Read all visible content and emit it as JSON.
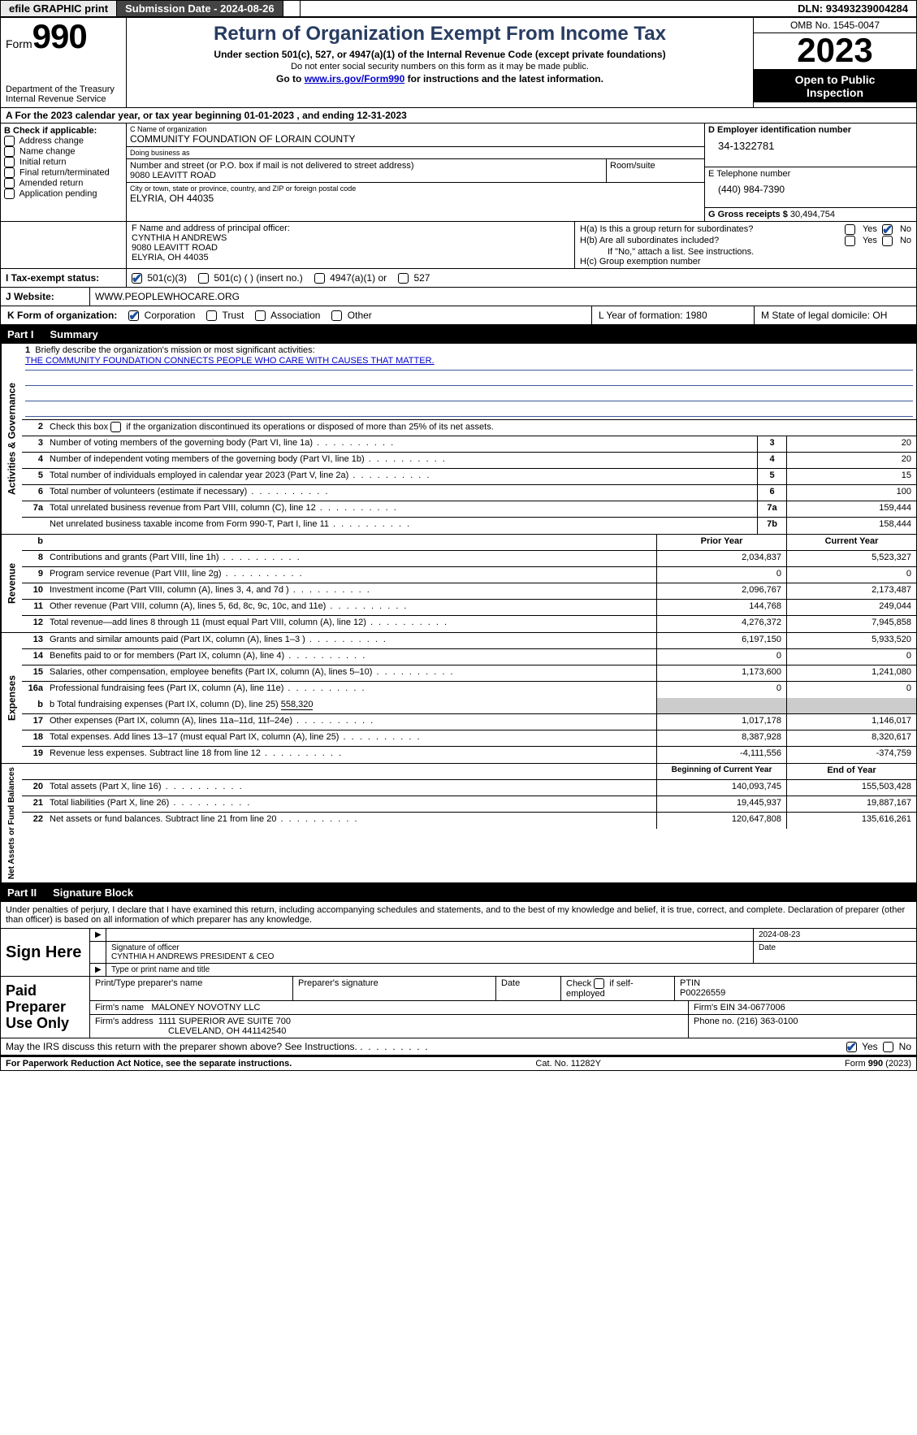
{
  "topbar": {
    "efile": "efile GRAPHIC print",
    "submission": "Submission Date - 2024-08-26",
    "dln_label": "DLN:",
    "dln": "93493239004284"
  },
  "header": {
    "form_word": "Form",
    "form_no": "990",
    "title": "Return of Organization Exempt From Income Tax",
    "sub1": "Under section 501(c), 527, or 4947(a)(1) of the Internal Revenue Code (except private foundations)",
    "sub2": "Do not enter social security numbers on this form as it may be made public.",
    "sub3_pre": "Go to ",
    "sub3_link": "www.irs.gov/Form990",
    "sub3_post": " for instructions and the latest information.",
    "dept": "Department of the Treasury",
    "irs": "Internal Revenue Service",
    "omb": "OMB No. 1545-0047",
    "year": "2023",
    "inspect1": "Open to Public",
    "inspect2": "Inspection"
  },
  "rowA": {
    "text_pre": "A For the 2023 calendar year, or tax year beginning ",
    "begin": "01-01-2023",
    "mid": " , and ending ",
    "end": "12-31-2023"
  },
  "colB": {
    "label": "B Check if applicable:",
    "items": [
      "Address change",
      "Name change",
      "Initial return",
      "Final return/terminated",
      "Amended return",
      "Application pending"
    ]
  },
  "colC": {
    "name_label": "C Name of organization",
    "name": "COMMUNITY FOUNDATION OF LORAIN COUNTY",
    "dba_label": "Doing business as",
    "dba": "",
    "addr_label": "Number and street (or P.O. box if mail is not delivered to street address)",
    "addr": "9080 LEAVITT ROAD",
    "room_label": "Room/suite",
    "city_label": "City or town, state or province, country, and ZIP or foreign postal code",
    "city": "ELYRIA, OH  44035"
  },
  "colD": {
    "ein_label": "D Employer identification number",
    "ein": "34-1322781",
    "phone_label": "E Telephone number",
    "phone": "(440) 984-7390",
    "gross_label": "G Gross receipts $",
    "gross": "30,494,754"
  },
  "F": {
    "label": "F  Name and address of principal officer:",
    "l1": "CYNTHIA H ANDREWS",
    "l2": "9080 LEAVITT ROAD",
    "l3": "ELYRIA, OH  44035"
  },
  "H": {
    "a": "H(a)  Is this a group return for subordinates?",
    "b": "H(b)  Are all subordinates included?",
    "b2": "If \"No,\" attach a list. See instructions.",
    "c": "H(c)  Group exemption number",
    "yes": "Yes",
    "no": "No"
  },
  "I": {
    "label": "I   Tax-exempt status:",
    "o1": "501(c)(3)",
    "o2": "501(c) (  ) (insert no.)",
    "o3": "4947(a)(1) or",
    "o4": "527"
  },
  "J": {
    "label": "J   Website:",
    "val": "WWW.PEOPLEWHOCARE.ORG"
  },
  "K": {
    "label": "K Form of organization:",
    "o1": "Corporation",
    "o2": "Trust",
    "o3": "Association",
    "o4": "Other",
    "L": "L Year of formation: 1980",
    "M": "M State of legal domicile: OH"
  },
  "part1": {
    "pn": "Part I",
    "title": "Summary"
  },
  "summary": {
    "gov_label": "Activities & Governance",
    "rev_label": "Revenue",
    "exp_label": "Expenses",
    "net_label": "Net Assets or Fund Balances",
    "l1a": "Briefly describe the organization's mission or most significant activities:",
    "l1b": "THE COMMUNITY FOUNDATION CONNECTS PEOPLE WHO CARE WITH CAUSES THAT MATTER.",
    "l2": "Check this box      if the organization discontinued its operations or disposed of more than 25% of its net assets.",
    "rows_gov": [
      {
        "n": "3",
        "t": "Number of voting members of the governing body (Part VI, line 1a)",
        "box": "3",
        "v": "20"
      },
      {
        "n": "4",
        "t": "Number of independent voting members of the governing body (Part VI, line 1b)",
        "box": "4",
        "v": "20"
      },
      {
        "n": "5",
        "t": "Total number of individuals employed in calendar year 2023 (Part V, line 2a)",
        "box": "5",
        "v": "15"
      },
      {
        "n": "6",
        "t": "Total number of volunteers (estimate if necessary)",
        "box": "6",
        "v": "100"
      },
      {
        "n": "7a",
        "t": "Total unrelated business revenue from Part VIII, column (C), line 12",
        "box": "7a",
        "v": "159,444"
      },
      {
        "n": "",
        "t": "Net unrelated business taxable income from Form 990-T, Part I, line 11",
        "box": "7b",
        "v": "158,444"
      }
    ],
    "col_prior": "Prior Year",
    "col_curr": "Current Year",
    "rows_rev": [
      {
        "n": "8",
        "t": "Contributions and grants (Part VIII, line 1h)",
        "p": "2,034,837",
        "c": "5,523,327"
      },
      {
        "n": "9",
        "t": "Program service revenue (Part VIII, line 2g)",
        "p": "0",
        "c": "0"
      },
      {
        "n": "10",
        "t": "Investment income (Part VIII, column (A), lines 3, 4, and 7d )",
        "p": "2,096,767",
        "c": "2,173,487"
      },
      {
        "n": "11",
        "t": "Other revenue (Part VIII, column (A), lines 5, 6d, 8c, 9c, 10c, and 11e)",
        "p": "144,768",
        "c": "249,044"
      },
      {
        "n": "12",
        "t": "Total revenue—add lines 8 through 11 (must equal Part VIII, column (A), line 12)",
        "p": "4,276,372",
        "c": "7,945,858"
      }
    ],
    "rows_exp": [
      {
        "n": "13",
        "t": "Grants and similar amounts paid (Part IX, column (A), lines 1–3 )",
        "p": "6,197,150",
        "c": "5,933,520"
      },
      {
        "n": "14",
        "t": "Benefits paid to or for members (Part IX, column (A), line 4)",
        "p": "0",
        "c": "0"
      },
      {
        "n": "15",
        "t": "Salaries, other compensation, employee benefits (Part IX, column (A), lines 5–10)",
        "p": "1,173,600",
        "c": "1,241,080"
      },
      {
        "n": "16a",
        "t": "Professional fundraising fees (Part IX, column (A), line 11e)",
        "p": "0",
        "c": "0"
      }
    ],
    "l16b_pre": "b  Total fundraising expenses (Part IX, column (D), line 25) ",
    "l16b_val": "558,320",
    "rows_exp2": [
      {
        "n": "17",
        "t": "Other expenses (Part IX, column (A), lines 11a–11d, 11f–24e)",
        "p": "1,017,178",
        "c": "1,146,017"
      },
      {
        "n": "18",
        "t": "Total expenses. Add lines 13–17 (must equal Part IX, column (A), line 25)",
        "p": "8,387,928",
        "c": "8,320,617"
      },
      {
        "n": "19",
        "t": "Revenue less expenses. Subtract line 18 from line 12",
        "p": "-4,111,556",
        "c": "-374,759"
      }
    ],
    "col_beg": "Beginning of Current Year",
    "col_end": "End of Year",
    "rows_net": [
      {
        "n": "20",
        "t": "Total assets (Part X, line 16)",
        "p": "140,093,745",
        "c": "155,503,428"
      },
      {
        "n": "21",
        "t": "Total liabilities (Part X, line 26)",
        "p": "19,445,937",
        "c": "19,887,167"
      },
      {
        "n": "22",
        "t": "Net assets or fund balances. Subtract line 21 from line 20",
        "p": "120,647,808",
        "c": "135,616,261"
      }
    ]
  },
  "part2": {
    "pn": "Part II",
    "title": "Signature Block"
  },
  "sig": {
    "decl": "Under penalties of perjury, I declare that I have examined this return, including accompanying schedules and statements, and to the best of my knowledge and belief, it is true, correct, and complete. Declaration of preparer (other than officer) is based on all information of which preparer has any knowledge.",
    "sign_here": "Sign Here",
    "date": "2024-08-23",
    "sig_label": "Signature of officer",
    "officer": "CYNTHIA H ANDREWS  PRESIDENT & CEO",
    "type_label": "Type or print name and title",
    "date_label": "Date",
    "paid": "Paid Preparer Use Only",
    "pp_name_label": "Print/Type preparer's name",
    "pp_sig_label": "Preparer's signature",
    "pp_date_label": "Date",
    "pp_check": "Check        if self-employed",
    "ptin_label": "PTIN",
    "ptin": "P00226559",
    "firm_name_label": "Firm's name",
    "firm_name": "MALONEY NOVOTNY LLC",
    "firm_ein_label": "Firm's EIN",
    "firm_ein": "34-0677006",
    "firm_addr_label": "Firm's address",
    "firm_addr1": "1111 SUPERIOR AVE SUITE 700",
    "firm_addr2": "CLEVELAND, OH  441142540",
    "firm_phone_label": "Phone no.",
    "firm_phone": "(216) 363-0100"
  },
  "mayirs": {
    "q": "May the IRS discuss this return with the preparer shown above? See Instructions.",
    "yes": "Yes",
    "no": "No"
  },
  "footer": {
    "left": "For Paperwork Reduction Act Notice, see the separate instructions.",
    "mid": "Cat. No. 11282Y",
    "right_pre": "Form ",
    "right_b": "990",
    "right_post": " (2023)"
  }
}
